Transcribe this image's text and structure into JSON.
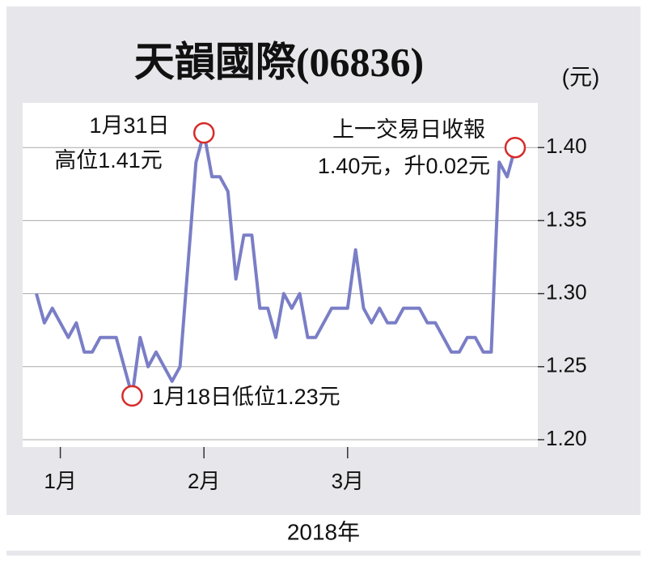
{
  "chart_data": {
    "type": "line",
    "title": "天韻國際(06836)",
    "y_unit": "(元)",
    "x_label": "2018年",
    "categories": [
      null,
      null,
      null,
      "1月",
      null,
      null,
      null,
      null,
      null,
      null,
      null,
      null,
      null,
      null,
      null,
      null,
      null,
      null,
      null,
      null,
      null,
      "2月",
      null,
      null,
      null,
      null,
      null,
      null,
      null,
      null,
      null,
      null,
      null,
      null,
      null,
      null,
      null,
      null,
      null,
      "3月",
      null,
      null,
      null,
      null,
      null,
      null,
      null,
      null,
      null,
      null,
      null,
      null,
      null,
      null,
      null,
      null,
      null,
      null,
      null,
      null,
      null
    ],
    "series": [
      {
        "name": "天韻國際",
        "color": "#7a7ec6",
        "values": [
          1.3,
          1.28,
          1.29,
          1.28,
          1.27,
          1.28,
          1.26,
          1.26,
          1.27,
          1.27,
          1.27,
          1.25,
          1.23,
          1.27,
          1.25,
          1.26,
          1.25,
          1.24,
          1.25,
          1.32,
          1.39,
          1.41,
          1.38,
          1.38,
          1.37,
          1.31,
          1.34,
          1.34,
          1.29,
          1.29,
          1.27,
          1.3,
          1.29,
          1.3,
          1.27,
          1.27,
          1.28,
          1.29,
          1.29,
          1.29,
          1.33,
          1.29,
          1.28,
          1.29,
          1.28,
          1.28,
          1.29,
          1.29,
          1.29,
          1.28,
          1.28,
          1.27,
          1.26,
          1.26,
          1.27,
          1.27,
          1.26,
          1.26,
          1.39,
          1.38,
          1.4
        ]
      }
    ],
    "ylim": [
      1.195,
      1.4306
    ],
    "yticks": [
      {
        "value": 1.2,
        "label": "1.20"
      },
      1.25,
      {
        "value": 1.3,
        "label": "1.30"
      },
      1.35,
      {
        "value": 1.4,
        "label": "1.40"
      }
    ],
    "grid": true,
    "marker_color": "#d62b2b",
    "annotations": {
      "high_date": "1月31日",
      "high": "高位1.41元",
      "last_title": "上一交易日收報",
      "last": "1.40元，升0.02元",
      "low": "1月18日低位1.23元"
    }
  }
}
